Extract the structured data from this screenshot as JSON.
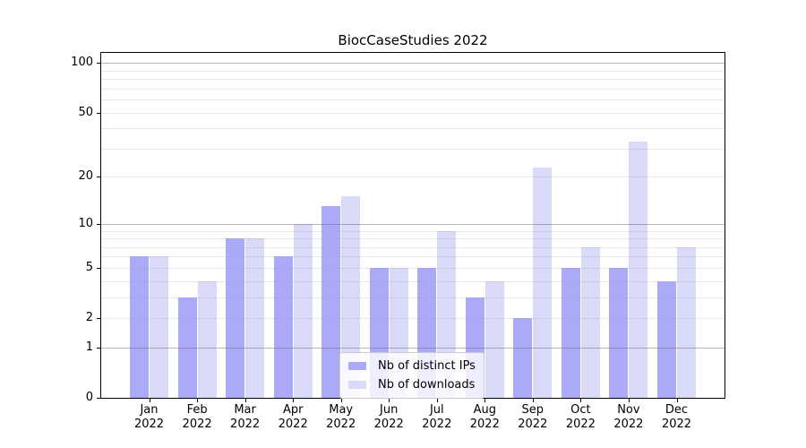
{
  "chart_data": {
    "type": "bar",
    "title": "BiocCaseStudies 2022",
    "categories": [
      "Jan",
      "Feb",
      "Mar",
      "Apr",
      "May",
      "Jun",
      "Jul",
      "Aug",
      "Sep",
      "Oct",
      "Nov",
      "Dec"
    ],
    "year_label": "2022",
    "series": [
      {
        "name": "Nb of distinct IPs",
        "color": "#aaaaf8",
        "values": [
          6,
          3,
          8,
          6,
          13,
          5,
          5,
          3,
          2,
          5,
          5,
          4
        ]
      },
      {
        "name": "Nb of downloads",
        "color": "#d9d9f8",
        "values": [
          6,
          4,
          8,
          10,
          15,
          5,
          9,
          4,
          23,
          7,
          33,
          7
        ]
      }
    ],
    "yscale": "log1p",
    "ylim": [
      0,
      115
    ],
    "yticks": [
      0,
      1,
      2,
      5,
      10,
      20,
      50,
      100
    ],
    "gridlines": {
      "major": [
        1,
        10,
        100
      ],
      "minor": [
        2,
        3,
        4,
        5,
        6,
        7,
        8,
        9,
        20,
        30,
        40,
        50,
        60,
        70,
        80,
        90
      ]
    },
    "grid": true,
    "legend_position": "lower center",
    "xlabel": "",
    "ylabel": ""
  }
}
